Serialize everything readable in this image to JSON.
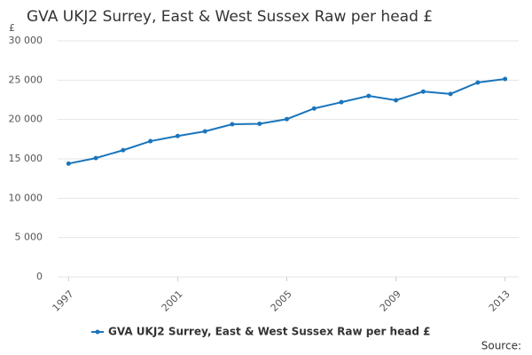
{
  "chart_data": {
    "type": "line",
    "title": "GVA UKJ2 Surrey, East & West Sussex Raw per head £",
    "y_label": "£",
    "source_label": "Source:",
    "x": [
      1997,
      1998,
      1999,
      2000,
      2001,
      2002,
      2003,
      2004,
      2005,
      2006,
      2007,
      2008,
      2009,
      2010,
      2011,
      2012,
      2013
    ],
    "series": [
      {
        "name": "GVA UKJ2 Surrey, East & West Sussex Raw per head £",
        "color": "#1a75bc",
        "values": [
          14400,
          15100,
          16100,
          17250,
          17900,
          18500,
          19400,
          19450,
          20050,
          21400,
          22200,
          23000,
          22450,
          23550,
          23250,
          24700,
          25150
        ]
      }
    ],
    "xlim": [
      1996.6,
      2013.5
    ],
    "xticks": [
      1997,
      2001,
      2005,
      2009,
      2013
    ],
    "ylim": [
      0,
      30000
    ],
    "yticks": [
      0,
      {
        "value": 5000,
        "label": "5 000"
      },
      {
        "value": 10000,
        "label": "10 000"
      },
      {
        "value": 15000,
        "label": "15 000"
      },
      {
        "value": 20000,
        "label": "20 000"
      },
      {
        "value": 25000,
        "label": "25 000"
      },
      {
        "value": 30000,
        "label": "30 000"
      }
    ],
    "grid": true
  }
}
